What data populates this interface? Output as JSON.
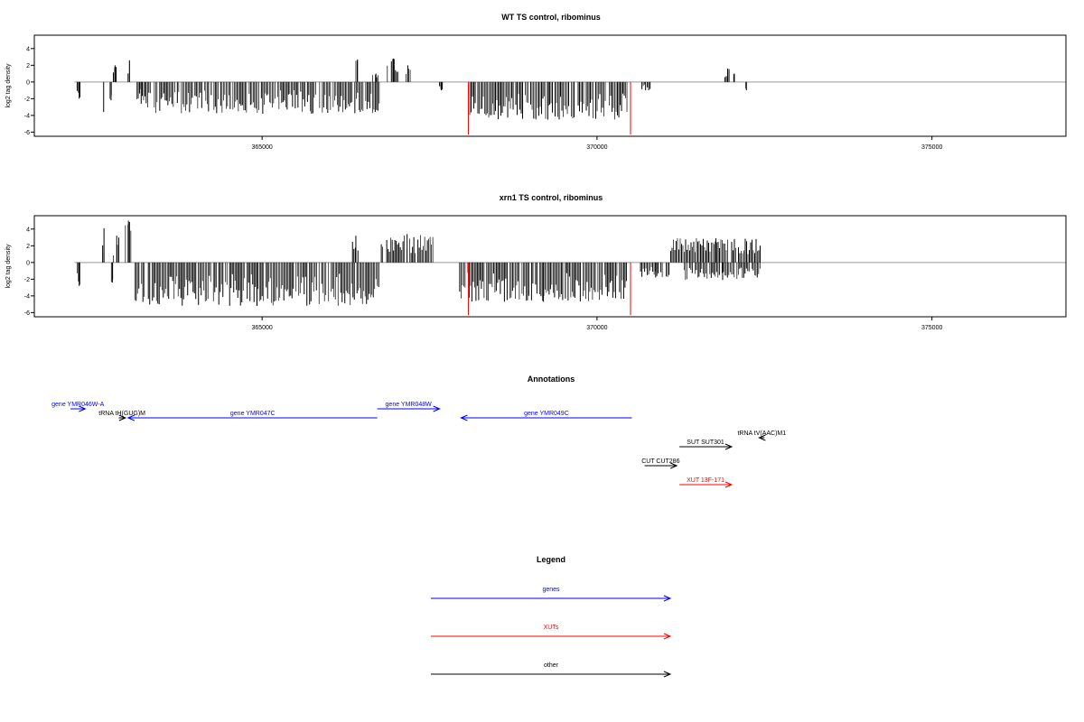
{
  "chart_data": [
    {
      "type": "bar",
      "title": "WT TS control, ribominus",
      "ylabel": "log2 tag density",
      "xlabel": "",
      "xlim": [
        361600,
        377000
      ],
      "ylim": [
        -6.5,
        5.6
      ],
      "xticks": [
        365000,
        370000,
        375000
      ],
      "xtick_labels": [
        "365000",
        "370000",
        "375000"
      ],
      "yticks": [
        -6,
        -4,
        -2,
        0,
        2,
        4
      ],
      "ytick_labels": [
        "-6",
        "-4",
        "-2",
        "0",
        "2",
        "4"
      ],
      "baseline": {
        "from": 362200,
        "to": 377000,
        "color": "#999999"
      },
      "positive_segments": [
        {
          "start": 362780,
          "end": 362830,
          "max": 2.0,
          "seed": 11
        },
        {
          "start": 363000,
          "end": 363040,
          "max": 2.6,
          "seed": 12
        },
        {
          "start": 366400,
          "end": 366450,
          "max": 2.7,
          "seed": 13
        },
        {
          "start": 366650,
          "end": 366750,
          "max": 1.0,
          "seed": 14
        },
        {
          "start": 366870,
          "end": 367050,
          "max": 2.8,
          "seed": 15
        },
        {
          "start": 367130,
          "end": 367220,
          "max": 2.0,
          "seed": 16
        },
        {
          "start": 371910,
          "end": 371990,
          "max": 1.6,
          "seed": 17
        },
        {
          "start": 372040,
          "end": 372060,
          "max": 1.0,
          "seed": 18
        }
      ],
      "negative_segments": [
        {
          "start": 362240,
          "end": 362300,
          "min": -2.0,
          "seed": 21
        },
        {
          "start": 362620,
          "end": 362650,
          "min": -3.6,
          "seed": 22
        },
        {
          "start": 362730,
          "end": 362760,
          "min": -2.2,
          "seed": 23
        },
        {
          "start": 363130,
          "end": 363260,
          "min": -2.6,
          "seed": 24
        },
        {
          "start": 363270,
          "end": 366750,
          "min": -3.8,
          "seed": 25
        },
        {
          "start": 367650,
          "end": 367700,
          "min": -1.0,
          "seed": 26
        },
        {
          "start": 368080,
          "end": 370450,
          "min": -4.5,
          "seed": 27
        },
        {
          "start": 370650,
          "end": 370800,
          "min": -1.0,
          "seed": 28
        },
        {
          "start": 372220,
          "end": 372240,
          "min": -1.0,
          "seed": 29
        }
      ],
      "red_bars": [
        {
          "x": 368080,
          "y": -6.3
        },
        {
          "x": 370500,
          "y": -6.3
        }
      ],
      "bar_color": "#000000",
      "red_color": "#ff0000"
    },
    {
      "type": "bar",
      "title": "xrn1 TS control, ribominus",
      "ylabel": "log2 tag density",
      "xlabel": "",
      "xlim": [
        361600,
        377000
      ],
      "ylim": [
        -6.5,
        5.6
      ],
      "xticks": [
        365000,
        370000,
        375000
      ],
      "xtick_labels": [
        "365000",
        "370000",
        "375000"
      ],
      "yticks": [
        -6,
        -4,
        -2,
        0,
        2,
        4
      ],
      "ytick_labels": [
        "-6",
        "-4",
        "-2",
        "0",
        "2",
        "4"
      ],
      "baseline": {
        "from": 362200,
        "to": 377000,
        "color": "#999999"
      },
      "positive_segments": [
        {
          "start": 362620,
          "end": 362660,
          "max": 4.1,
          "seed": 31
        },
        {
          "start": 362780,
          "end": 362880,
          "max": 3.2,
          "seed": 32
        },
        {
          "start": 362960,
          "end": 363050,
          "max": 5.0,
          "seed": 33
        },
        {
          "start": 366350,
          "end": 366450,
          "max": 3.2,
          "seed": 34
        },
        {
          "start": 366780,
          "end": 367550,
          "max": 3.4,
          "seed": 35
        },
        {
          "start": 371100,
          "end": 372450,
          "max": 2.9,
          "seed": 36
        }
      ],
      "negative_segments": [
        {
          "start": 362240,
          "end": 362300,
          "min": -2.8,
          "seed": 41
        },
        {
          "start": 362750,
          "end": 362780,
          "min": -2.4,
          "seed": 42
        },
        {
          "start": 363100,
          "end": 366750,
          "min": -5.2,
          "seed": 43
        },
        {
          "start": 367950,
          "end": 370450,
          "min": -4.7,
          "seed": 44
        },
        {
          "start": 370650,
          "end": 371100,
          "min": -1.8,
          "seed": 45
        },
        {
          "start": 371300,
          "end": 372450,
          "min": -2.1,
          "seed": 46
        }
      ],
      "red_bars": [
        {
          "x": 368080,
          "y": -6.3
        },
        {
          "x": 370500,
          "y": -6.3
        }
      ],
      "bar_color": "#000000",
      "red_color": "#ff0000"
    }
  ],
  "annotations": {
    "title": "Annotations",
    "items": [
      {
        "label": "gene YMR046W-A",
        "start": 362140,
        "end": 362360,
        "row": 0,
        "color": "#0000ff"
      },
      {
        "label": "tRNA tH(GUG)M",
        "start": 362860,
        "end": 362960,
        "row": 1,
        "color": "#000000"
      },
      {
        "label": "gene YMR047C",
        "start": 366720,
        "end": 363000,
        "row": 1,
        "color": "#0000ff"
      },
      {
        "label": "gene YMR048W",
        "start": 366720,
        "end": 367650,
        "row": 0,
        "color": "#0000ff"
      },
      {
        "label": "gene YMR049C",
        "start": 370520,
        "end": 367970,
        "row": 1,
        "color": "#0000ff"
      },
      {
        "label": "tRNA tV(AAC)M1",
        "start": 372500,
        "end": 372420,
        "row": 2,
        "color": "#000000"
      },
      {
        "label": "SUT SUT301",
        "start": 371230,
        "end": 372010,
        "row": 3,
        "color": "#000000"
      },
      {
        "label": "CUT CUT286",
        "start": 370710,
        "end": 371190,
        "row": 4,
        "color": "#000000"
      },
      {
        "label": "XUT 13F-171",
        "start": 371230,
        "end": 372010,
        "row": 5,
        "color": "#ff0000"
      }
    ]
  },
  "legend": {
    "title": "Legend",
    "entries": [
      {
        "label": "genes",
        "color": "#0000ff"
      },
      {
        "label": "XUTs",
        "color": "#ff0000"
      },
      {
        "label": "other",
        "color": "#000000"
      }
    ]
  }
}
